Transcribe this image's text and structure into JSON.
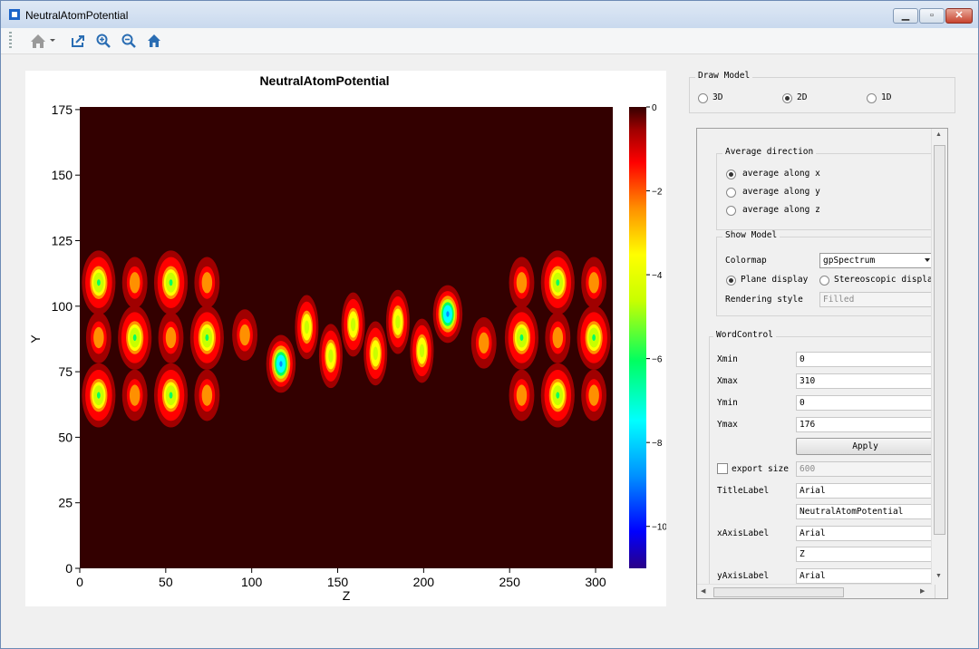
{
  "window": {
    "title": "NeutralAtomPotential"
  },
  "toolbar": {
    "icons": [
      "home-dropdown-icon",
      "export-icon",
      "zoom-in-icon",
      "zoom-out-icon",
      "home-icon"
    ]
  },
  "chart_data": {
    "type": "heatmap",
    "title": "NeutralAtomPotential",
    "xlabel": "Z",
    "ylabel": "Y",
    "xlim": [
      0,
      310
    ],
    "ylim": [
      0,
      176
    ],
    "x_ticks": [
      "0",
      "50",
      "100",
      "150",
      "200",
      "250",
      "300"
    ],
    "y_ticks": [
      "0",
      "25",
      "50",
      "75",
      "100",
      "125",
      "150",
      "175"
    ],
    "x_tick_values": [
      0,
      50,
      100,
      150,
      200,
      250,
      300
    ],
    "y_tick_values": [
      0,
      25,
      50,
      75,
      100,
      125,
      150,
      175
    ],
    "colorbar": {
      "min": -11,
      "max": 0,
      "ticks": [
        {
          "v": 0,
          "l": "0"
        },
        {
          "v": -2,
          "l": "−2"
        },
        {
          "v": -4,
          "l": "−4"
        },
        {
          "v": -6,
          "l": "−6"
        },
        {
          "v": -8,
          "l": "−8"
        },
        {
          "v": -10,
          "l": "−10"
        }
      ]
    },
    "colormap": "gpSpectrum",
    "background_value": -0.2,
    "wells": [
      {
        "z": 11,
        "y": 109,
        "depth": -5.5,
        "sz": 4,
        "sy": 5
      },
      {
        "z": 53,
        "y": 109,
        "depth": -5.5,
        "sz": 4,
        "sy": 5
      },
      {
        "z": 32,
        "y": 109,
        "depth": -3,
        "sz": 3,
        "sy": 4
      },
      {
        "z": 74,
        "y": 109,
        "depth": -3,
        "sz": 3,
        "sy": 4
      },
      {
        "z": 11,
        "y": 88,
        "depth": -3,
        "sz": 3,
        "sy": 4
      },
      {
        "z": 53,
        "y": 88,
        "depth": -3,
        "sz": 3,
        "sy": 4
      },
      {
        "z": 32,
        "y": 88,
        "depth": -5.5,
        "sz": 4,
        "sy": 5
      },
      {
        "z": 74,
        "y": 88,
        "depth": -5.5,
        "sz": 4,
        "sy": 5
      },
      {
        "z": 11,
        "y": 66,
        "depth": -5.5,
        "sz": 4,
        "sy": 5
      },
      {
        "z": 53,
        "y": 66,
        "depth": -5.5,
        "sz": 4,
        "sy": 5
      },
      {
        "z": 32,
        "y": 66,
        "depth": -3,
        "sz": 3,
        "sy": 4
      },
      {
        "z": 74,
        "y": 66,
        "depth": -3,
        "sz": 3,
        "sy": 4
      },
      {
        "z": 96,
        "y": 89,
        "depth": -3,
        "sz": 3,
        "sy": 4
      },
      {
        "z": 117,
        "y": 78,
        "depth": -9,
        "sz": 3.5,
        "sy": 4.5
      },
      {
        "z": 132,
        "y": 92,
        "depth": -5,
        "sz": 2.8,
        "sy": 5
      },
      {
        "z": 146,
        "y": 81,
        "depth": -5,
        "sz": 2.8,
        "sy": 5
      },
      {
        "z": 159,
        "y": 93,
        "depth": -5,
        "sz": 2.8,
        "sy": 5
      },
      {
        "z": 172,
        "y": 82,
        "depth": -5,
        "sz": 2.8,
        "sy": 5
      },
      {
        "z": 185,
        "y": 94,
        "depth": -5,
        "sz": 2.8,
        "sy": 5
      },
      {
        "z": 199,
        "y": 83,
        "depth": -5,
        "sz": 2.8,
        "sy": 5
      },
      {
        "z": 214,
        "y": 97,
        "depth": -9,
        "sz": 3.5,
        "sy": 4.5
      },
      {
        "z": 235,
        "y": 86,
        "depth": -3,
        "sz": 3,
        "sy": 4
      },
      {
        "z": 257,
        "y": 109,
        "depth": -3,
        "sz": 3,
        "sy": 4
      },
      {
        "z": 299,
        "y": 109,
        "depth": -3,
        "sz": 3,
        "sy": 4
      },
      {
        "z": 278,
        "y": 109,
        "depth": -5.5,
        "sz": 4,
        "sy": 5
      },
      {
        "z": 257,
        "y": 88,
        "depth": -5.5,
        "sz": 4,
        "sy": 5
      },
      {
        "z": 299,
        "y": 88,
        "depth": -5.5,
        "sz": 4,
        "sy": 5
      },
      {
        "z": 278,
        "y": 88,
        "depth": -3,
        "sz": 3,
        "sy": 4
      },
      {
        "z": 257,
        "y": 66,
        "depth": -3,
        "sz": 3,
        "sy": 4
      },
      {
        "z": 299,
        "y": 66,
        "depth": -3,
        "sz": 3,
        "sy": 4
      },
      {
        "z": 278,
        "y": 66,
        "depth": -5.5,
        "sz": 4,
        "sy": 5
      }
    ]
  },
  "draw_model": {
    "title": "Draw Model",
    "options": [
      {
        "label": "3D",
        "checked": false
      },
      {
        "label": "2D",
        "checked": true
      },
      {
        "label": "1D",
        "checked": false
      }
    ]
  },
  "average_direction": {
    "title": "Average direction",
    "options": [
      {
        "label": "average along x",
        "checked": true
      },
      {
        "label": "average along y",
        "checked": false
      },
      {
        "label": "average along z",
        "checked": false
      }
    ]
  },
  "show_model": {
    "title": "Show Model",
    "colormap_label": "Colormap",
    "colormap_value": "gpSpectrum",
    "plane_label": "Plane display",
    "stereo_label": "Stereoscopic display",
    "rendering_label": "Rendering style",
    "rendering_value": "Filled"
  },
  "word_control": {
    "title": "WordControl",
    "xmin_label": "Xmin",
    "xmin": "0",
    "xmax_label": "Xmax",
    "xmax": "310",
    "ymin_label": "Ymin",
    "ymin": "0",
    "ymax_label": "Ymax",
    "ymax": "176",
    "apply_label": "Apply",
    "export_size_label": "export size",
    "export_size": "600",
    "title_label": "TitleLabel",
    "title_font": "Arial",
    "title_text": "NeutralAtomPotential",
    "xaxis_label": "xAxisLabel",
    "xaxis_font": "Arial",
    "xaxis_text": "Z",
    "yaxis_label": "yAxisLabel",
    "yaxis_font": "Arial"
  },
  "colors": {
    "titlebar": "#c9d9ee",
    "accent": "#2a6db3"
  }
}
